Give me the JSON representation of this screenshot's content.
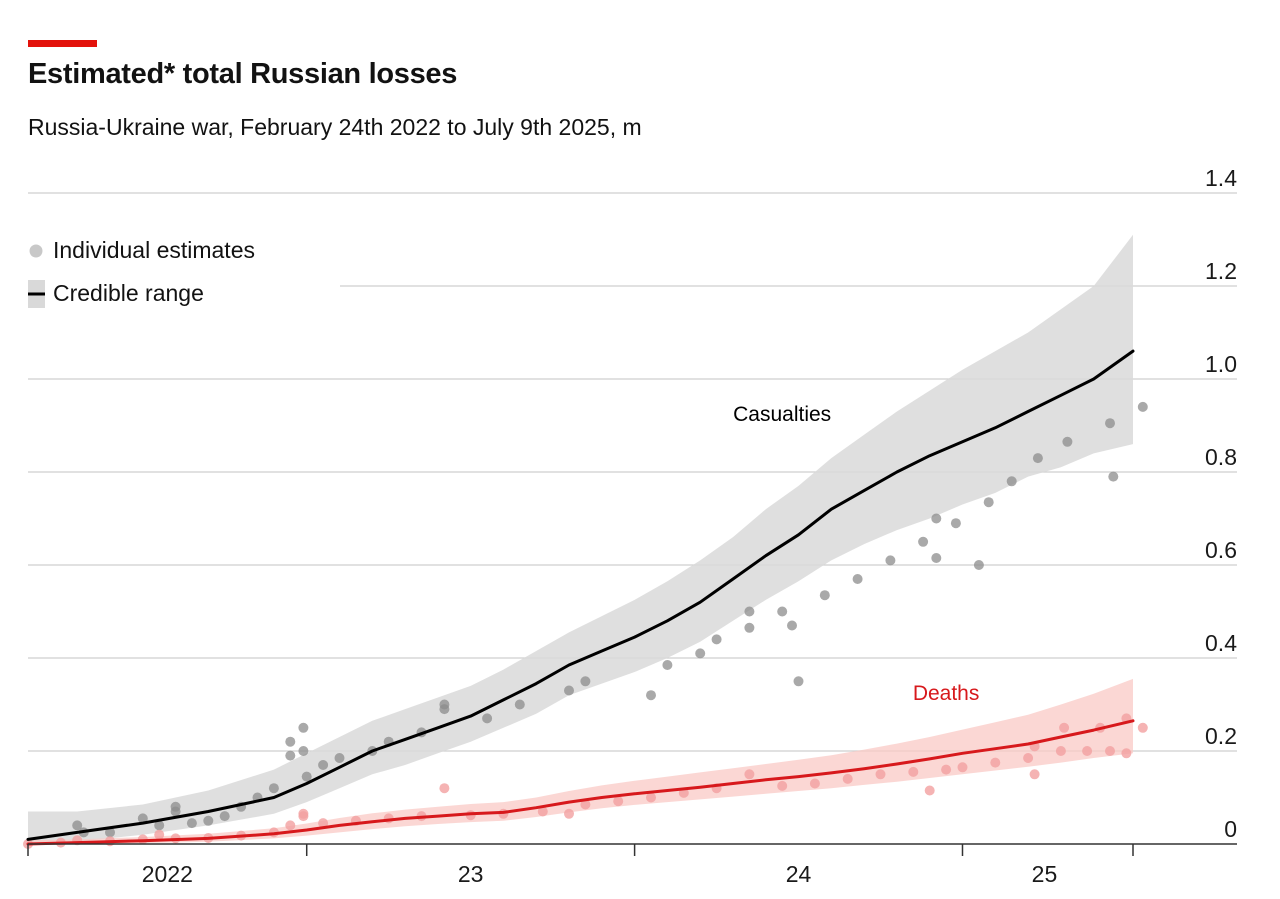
{
  "header": {
    "title": "Estimated* total Russian losses",
    "subtitle": "Russia-Ukraine war, February 24th 2022 to July 9th 2025, m"
  },
  "colors": {
    "accent": "#E3120B",
    "casualties_line": "#000000",
    "casualties_band": "#D9D9D9",
    "casualties_points": "#8C8C8C",
    "deaths_line": "#D7191C",
    "deaths_band": "#F9C9C5",
    "deaths_points": "#F2A0A0",
    "grid": "#CFCFCF",
    "axis": "#333333"
  },
  "chart_data": {
    "type": "line",
    "title": "Estimated* total Russian losses",
    "subtitle": "Russia-Ukraine war, February 24th 2022 to July 9th 2025, m",
    "xlabel": "",
    "ylabel": "m",
    "xlim": [
      2022.15,
      2025.65
    ],
    "ylim": [
      0,
      1.4
    ],
    "grid": true,
    "y_ticks": [
      {
        "value": 0,
        "label": "0"
      },
      {
        "value": 0.2,
        "label": "0.2"
      },
      {
        "value": 0.4,
        "label": "0.4"
      },
      {
        "value": 0.6,
        "label": "0.6"
      },
      {
        "value": 0.8,
        "label": "0.8"
      },
      {
        "value": 1.0,
        "label": "1.0"
      },
      {
        "value": 1.2,
        "label": "1.2"
      },
      {
        "value": 1.4,
        "label": "1.4"
      }
    ],
    "x_ticks": [
      2022.15,
      2023.0,
      2024.0,
      2025.0,
      2025.52
    ],
    "x_tick_labels": [
      {
        "x": 2022.575,
        "label": "2022"
      },
      {
        "x": 2023.5,
        "label": "23"
      },
      {
        "x": 2024.5,
        "label": "24"
      },
      {
        "x": 2025.25,
        "label": "25"
      }
    ],
    "legend": {
      "position": "top-left",
      "items": [
        {
          "label": "Individual estimates",
          "marker": "dot"
        },
        {
          "label": "Credible range",
          "marker": "line-band"
        }
      ]
    },
    "series": [
      {
        "name": "Casualties",
        "label": "Casualties",
        "label_at": [
          2024.45,
          0.91
        ],
        "x": [
          2022.15,
          2022.3,
          2022.5,
          2022.7,
          2022.9,
          2023.0,
          2023.1,
          2023.2,
          2023.3,
          2023.4,
          2023.5,
          2023.6,
          2023.7,
          2023.8,
          2023.9,
          2024.0,
          2024.1,
          2024.2,
          2024.3,
          2024.4,
          2024.5,
          2024.6,
          2024.7,
          2024.8,
          2024.9,
          2025.0,
          2025.1,
          2025.2,
          2025.3,
          2025.4,
          2025.52
        ],
        "values": [
          0.01,
          0.025,
          0.045,
          0.07,
          0.1,
          0.13,
          0.165,
          0.2,
          0.225,
          0.25,
          0.275,
          0.31,
          0.345,
          0.385,
          0.415,
          0.445,
          0.48,
          0.52,
          0.57,
          0.62,
          0.665,
          0.72,
          0.76,
          0.8,
          0.835,
          0.865,
          0.895,
          0.93,
          0.965,
          1.0,
          1.06
        ],
        "lower": [
          0.0,
          0.005,
          0.02,
          0.04,
          0.065,
          0.09,
          0.12,
          0.15,
          0.17,
          0.195,
          0.22,
          0.25,
          0.28,
          0.32,
          0.345,
          0.37,
          0.4,
          0.435,
          0.48,
          0.525,
          0.565,
          0.61,
          0.645,
          0.675,
          0.7,
          0.73,
          0.755,
          0.79,
          0.81,
          0.84,
          0.86
        ],
        "upper": [
          0.07,
          0.07,
          0.085,
          0.115,
          0.16,
          0.195,
          0.23,
          0.265,
          0.29,
          0.315,
          0.34,
          0.375,
          0.415,
          0.455,
          0.49,
          0.525,
          0.565,
          0.61,
          0.66,
          0.72,
          0.77,
          0.83,
          0.88,
          0.93,
          0.975,
          1.02,
          1.06,
          1.1,
          1.15,
          1.2,
          1.31
        ],
        "estimates": [
          [
            2022.3,
            0.04
          ],
          [
            2022.32,
            0.025
          ],
          [
            2022.4,
            0.025
          ],
          [
            2022.5,
            0.055
          ],
          [
            2022.55,
            0.04
          ],
          [
            2022.6,
            0.08
          ],
          [
            2022.6,
            0.07
          ],
          [
            2022.65,
            0.045
          ],
          [
            2022.7,
            0.05
          ],
          [
            2022.75,
            0.06
          ],
          [
            2022.8,
            0.08
          ],
          [
            2022.85,
            0.1
          ],
          [
            2022.9,
            0.12
          ],
          [
            2022.95,
            0.19
          ],
          [
            2022.95,
            0.22
          ],
          [
            2022.99,
            0.25
          ],
          [
            2022.99,
            0.2
          ],
          [
            2023.0,
            0.145
          ],
          [
            2023.05,
            0.17
          ],
          [
            2023.1,
            0.185
          ],
          [
            2023.2,
            0.2
          ],
          [
            2023.25,
            0.22
          ],
          [
            2023.35,
            0.24
          ],
          [
            2023.42,
            0.29
          ],
          [
            2023.42,
            0.3
          ],
          [
            2023.55,
            0.27
          ],
          [
            2023.65,
            0.3
          ],
          [
            2023.8,
            0.33
          ],
          [
            2023.85,
            0.35
          ],
          [
            2024.05,
            0.32
          ],
          [
            2024.1,
            0.385
          ],
          [
            2024.2,
            0.41
          ],
          [
            2024.25,
            0.44
          ],
          [
            2024.35,
            0.465
          ],
          [
            2024.35,
            0.5
          ],
          [
            2024.45,
            0.5
          ],
          [
            2024.48,
            0.47
          ],
          [
            2024.5,
            0.35
          ],
          [
            2024.58,
            0.535
          ],
          [
            2024.68,
            0.57
          ],
          [
            2024.78,
            0.61
          ],
          [
            2024.88,
            0.65
          ],
          [
            2024.92,
            0.615
          ],
          [
            2024.92,
            0.7
          ],
          [
            2024.98,
            0.69
          ],
          [
            2025.05,
            0.6
          ],
          [
            2025.08,
            0.735
          ],
          [
            2025.15,
            0.78
          ],
          [
            2025.23,
            0.83
          ],
          [
            2025.32,
            0.865
          ],
          [
            2025.45,
            0.905
          ],
          [
            2025.46,
            0.79
          ],
          [
            2025.55,
            0.94
          ]
        ]
      },
      {
        "name": "Deaths",
        "label": "Deaths",
        "label_at": [
          2024.95,
          0.31
        ],
        "x": [
          2022.15,
          2022.3,
          2022.5,
          2022.7,
          2022.9,
          2023.0,
          2023.1,
          2023.2,
          2023.3,
          2023.4,
          2023.5,
          2023.6,
          2023.7,
          2023.8,
          2023.9,
          2024.0,
          2024.1,
          2024.2,
          2024.3,
          2024.4,
          2024.5,
          2024.6,
          2024.7,
          2024.8,
          2024.9,
          2025.0,
          2025.1,
          2025.2,
          2025.3,
          2025.4,
          2025.52
        ],
        "values": [
          0.0,
          0.003,
          0.007,
          0.012,
          0.022,
          0.03,
          0.04,
          0.048,
          0.055,
          0.06,
          0.065,
          0.068,
          0.078,
          0.09,
          0.1,
          0.108,
          0.115,
          0.122,
          0.13,
          0.138,
          0.145,
          0.153,
          0.162,
          0.172,
          0.183,
          0.195,
          0.205,
          0.215,
          0.23,
          0.245,
          0.265
        ],
        "lower": [
          0.0,
          0.0,
          0.002,
          0.005,
          0.012,
          0.018,
          0.025,
          0.032,
          0.038,
          0.043,
          0.047,
          0.05,
          0.058,
          0.068,
          0.077,
          0.084,
          0.09,
          0.096,
          0.102,
          0.108,
          0.114,
          0.12,
          0.127,
          0.134,
          0.142,
          0.15,
          0.158,
          0.166,
          0.175,
          0.185,
          0.195
        ],
        "upper": [
          0.008,
          0.01,
          0.015,
          0.022,
          0.034,
          0.044,
          0.056,
          0.066,
          0.074,
          0.08,
          0.086,
          0.09,
          0.1,
          0.114,
          0.126,
          0.136,
          0.145,
          0.154,
          0.163,
          0.172,
          0.181,
          0.191,
          0.203,
          0.216,
          0.23,
          0.246,
          0.262,
          0.278,
          0.3,
          0.323,
          0.355
        ],
        "estimates": [
          [
            2022.15,
            0.0
          ],
          [
            2022.25,
            0.003
          ],
          [
            2022.3,
            0.008
          ],
          [
            2022.4,
            0.006
          ],
          [
            2022.5,
            0.01
          ],
          [
            2022.55,
            0.02
          ],
          [
            2022.6,
            0.012
          ],
          [
            2022.7,
            0.013
          ],
          [
            2022.8,
            0.018
          ],
          [
            2022.9,
            0.025
          ],
          [
            2022.95,
            0.04
          ],
          [
            2022.99,
            0.06
          ],
          [
            2022.99,
            0.065
          ],
          [
            2023.05,
            0.045
          ],
          [
            2023.15,
            0.05
          ],
          [
            2023.25,
            0.055
          ],
          [
            2023.35,
            0.06
          ],
          [
            2023.42,
            0.12
          ],
          [
            2023.5,
            0.062
          ],
          [
            2023.6,
            0.065
          ],
          [
            2023.72,
            0.07
          ],
          [
            2023.8,
            0.065
          ],
          [
            2023.85,
            0.085
          ],
          [
            2023.95,
            0.092
          ],
          [
            2024.05,
            0.1
          ],
          [
            2024.15,
            0.11
          ],
          [
            2024.25,
            0.12
          ],
          [
            2024.35,
            0.15
          ],
          [
            2024.45,
            0.125
          ],
          [
            2024.55,
            0.13
          ],
          [
            2024.65,
            0.14
          ],
          [
            2024.75,
            0.15
          ],
          [
            2024.85,
            0.155
          ],
          [
            2024.9,
            0.115
          ],
          [
            2024.95,
            0.16
          ],
          [
            2025.0,
            0.165
          ],
          [
            2025.1,
            0.175
          ],
          [
            2025.2,
            0.185
          ],
          [
            2025.22,
            0.15
          ],
          [
            2025.22,
            0.21
          ],
          [
            2025.3,
            0.2
          ],
          [
            2025.31,
            0.25
          ],
          [
            2025.38,
            0.2
          ],
          [
            2025.42,
            0.25
          ],
          [
            2025.45,
            0.2
          ],
          [
            2025.5,
            0.195
          ],
          [
            2025.5,
            0.27
          ],
          [
            2025.55,
            0.25
          ]
        ]
      }
    ]
  }
}
